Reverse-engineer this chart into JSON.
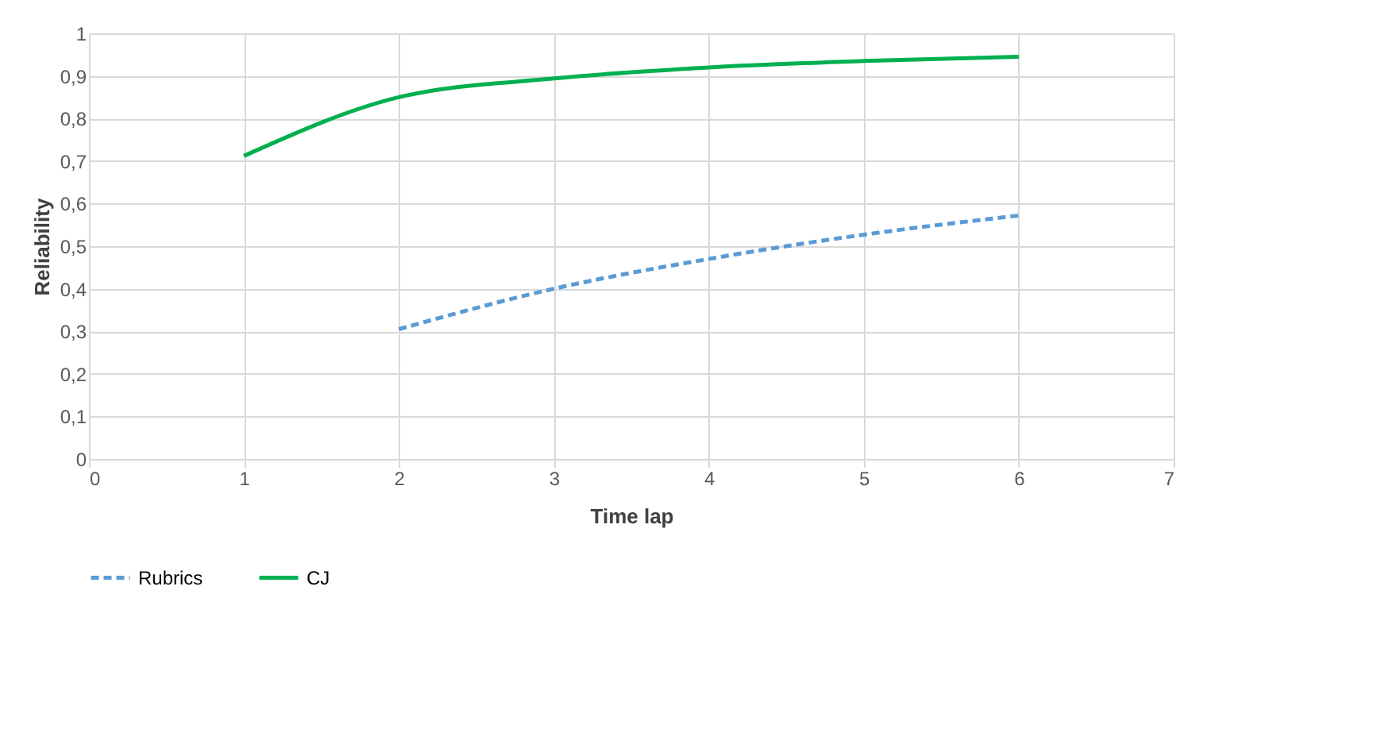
{
  "chart_data": {
    "type": "line",
    "xlabel": "Time lap",
    "ylabel": "Reliability",
    "xlim": [
      0,
      7
    ],
    "xticks": [
      0,
      1,
      2,
      3,
      4,
      5,
      6,
      7
    ],
    "ylim": [
      0,
      1
    ],
    "yticks": [
      0,
      {
        "value": 0.1,
        "label": "0,1"
      },
      {
        "value": 0.2,
        "label": "0,2"
      },
      {
        "value": 0.3,
        "label": "0,3"
      },
      {
        "value": 0.4,
        "label": "0,4"
      },
      {
        "value": 0.5,
        "label": "0,5"
      },
      {
        "value": 0.6,
        "label": "0,6"
      },
      {
        "value": 0.7,
        "label": "0,7"
      },
      {
        "value": 0.8,
        "label": "0,8"
      },
      {
        "value": 0.9,
        "label": "0,9"
      },
      1
    ],
    "grid": true,
    "legend": "bottom",
    "marker": "none",
    "series": [
      {
        "name": "Rubrics",
        "color": "#5b9bd5",
        "line_style": "dashed",
        "x": [
          2,
          3,
          4,
          5,
          6
        ],
        "values": [
          0.305,
          0.4,
          0.47,
          0.527,
          0.572
        ]
      },
      {
        "name": "CJ",
        "color": "#00b050",
        "line_style": "solid",
        "x": [
          1,
          2,
          3,
          4,
          5,
          6
        ],
        "values": [
          0.712,
          0.85,
          0.894,
          0.92,
          0.935,
          0.945
        ]
      }
    ]
  }
}
